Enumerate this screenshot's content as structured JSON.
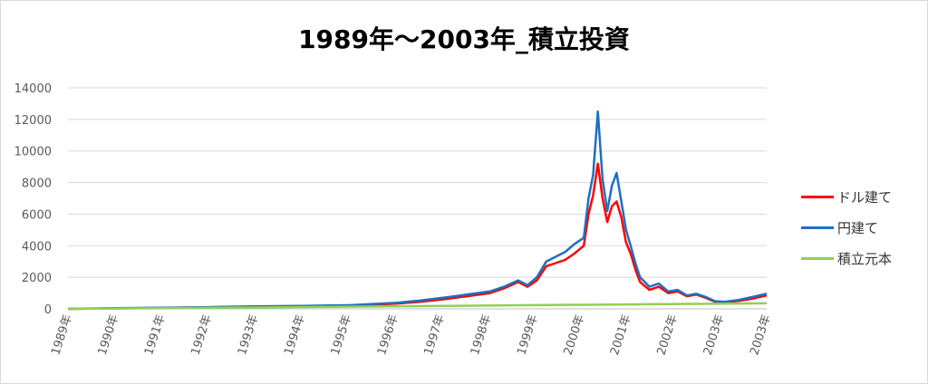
{
  "chart_data": {
    "type": "line",
    "title": "1989年～2003年_積立投資",
    "xlabel": "",
    "ylabel": "",
    "x_tick_labels": [
      "1989年",
      "1990年",
      "1991年",
      "1992年",
      "1993年",
      "1994年",
      "1995年",
      "1996年",
      "1997年",
      "1998年",
      "1999年",
      "2000年",
      "2001年",
      "2002年",
      "2003年",
      "2003年"
    ],
    "y_tick_labels": [
      "0",
      "2000",
      "4000",
      "6000",
      "8000",
      "10000",
      "12000",
      "14000"
    ],
    "ylim": [
      0,
      14000
    ],
    "xlim": [
      1989.0,
      2003.9
    ],
    "grid": true,
    "legend_position": "right",
    "series": [
      {
        "name": "ドル建て",
        "color": "#ff0000",
        "x": [
          1989.0,
          1990.0,
          1991.0,
          1992.0,
          1993.0,
          1994.0,
          1995.0,
          1996.0,
          1996.5,
          1997.0,
          1997.5,
          1998.0,
          1998.3,
          1998.6,
          1998.8,
          1999.0,
          1999.2,
          1999.4,
          1999.6,
          1999.8,
          2000.0,
          2000.1,
          2000.2,
          2000.3,
          2000.4,
          2000.5,
          2000.6,
          2000.7,
          2000.8,
          2000.9,
          2001.0,
          2001.1,
          2001.2,
          2001.4,
          2001.6,
          2001.8,
          2002.0,
          2002.2,
          2002.4,
          2002.6,
          2002.8,
          2003.0,
          2003.3,
          2003.6,
          2003.9
        ],
        "values": [
          0,
          30,
          60,
          100,
          140,
          170,
          200,
          330,
          450,
          600,
          800,
          1000,
          1300,
          1700,
          1400,
          1800,
          2700,
          2900,
          3100,
          3500,
          4000,
          6000,
          7200,
          9200,
          7000,
          5500,
          6500,
          6800,
          5800,
          4200,
          3500,
          2500,
          1700,
          1200,
          1400,
          1000,
          1100,
          800,
          900,
          700,
          450,
          400,
          500,
          650,
          850
        ]
      },
      {
        "name": "円建て",
        "color": "#1f6fc0",
        "x": [
          1989.0,
          1990.0,
          1991.0,
          1992.0,
          1993.0,
          1994.0,
          1995.0,
          1996.0,
          1996.5,
          1997.0,
          1997.5,
          1998.0,
          1998.3,
          1998.6,
          1998.8,
          1999.0,
          1999.2,
          1999.4,
          1999.6,
          1999.8,
          2000.0,
          2000.1,
          2000.2,
          2000.3,
          2000.4,
          2000.5,
          2000.6,
          2000.7,
          2000.8,
          2000.9,
          2001.0,
          2001.1,
          2001.2,
          2001.4,
          2001.6,
          2001.8,
          2002.0,
          2002.2,
          2002.4,
          2002.6,
          2002.8,
          2003.0,
          2003.3,
          2003.6,
          2003.9
        ],
        "values": [
          0,
          40,
          70,
          110,
          160,
          190,
          230,
          380,
          520,
          700,
          900,
          1100,
          1400,
          1800,
          1500,
          2000,
          3000,
          3300,
          3600,
          4100,
          4500,
          7000,
          8500,
          12500,
          8200,
          6200,
          7800,
          8600,
          6800,
          5000,
          4000,
          2900,
          2000,
          1400,
          1600,
          1100,
          1200,
          850,
          950,
          750,
          480,
          450,
          560,
          750,
          950
        ]
      },
      {
        "name": "積立元本",
        "color": "#92d050",
        "x": [
          1989.0,
          2003.9
        ],
        "values": [
          0,
          350
        ]
      }
    ]
  }
}
